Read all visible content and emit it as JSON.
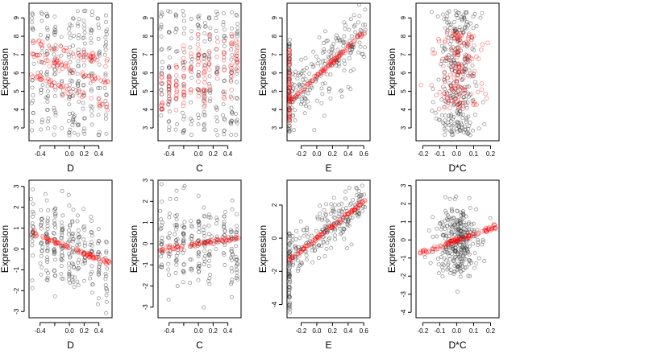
{
  "colors": {
    "observed": "#333333",
    "fitted": "#ff0000"
  },
  "chart_data": [
    {
      "type": "scatter",
      "row": 0,
      "col": 0,
      "xlabel": "D",
      "ylabel": "Expression",
      "xlim": [
        -0.55,
        0.58
      ],
      "ylim": [
        2.3,
        9.8
      ],
      "xticks": [
        -0.4,
        -0.2,
        0.0,
        0.2,
        0.4
      ],
      "xtick_labels": [
        "-0.4",
        "",
        "0.0",
        "0.2",
        "0.4"
      ],
      "yticks": [
        3,
        4,
        5,
        6,
        7,
        8,
        9
      ],
      "ytick_labels": [
        "3",
        "4",
        "5",
        "6",
        "7",
        "8",
        "9"
      ],
      "observed": {
        "x_columns": [
          -0.5,
          -0.38,
          -0.3,
          -0.2,
          -0.1,
          0.0,
          0.05,
          0.12,
          0.2,
          0.3,
          0.4,
          0.5
        ],
        "y_range": [
          2.6,
          9.4
        ],
        "count": 260
      },
      "fitted": {
        "lines": [
          {
            "x0": -0.52,
            "x1": 0.55,
            "y0": 7.7,
            "y1": 6.6
          },
          {
            "x0": -0.52,
            "x1": 0.55,
            "y0": 5.9,
            "y1": 4.1
          },
          {
            "x0": -0.52,
            "x1": 0.55,
            "y0": 7.0,
            "y1": 5.4
          }
        ],
        "count": 150
      }
    },
    {
      "type": "scatter",
      "row": 0,
      "col": 1,
      "xlabel": "C",
      "ylabel": "Expression",
      "xlim": [
        -0.55,
        0.58
      ],
      "ylim": [
        2.3,
        9.8
      ],
      "xticks": [
        -0.4,
        -0.2,
        0.0,
        0.2,
        0.4
      ],
      "xtick_labels": [
        "-0.4",
        "",
        "0.0",
        "0.2",
        "0.4"
      ],
      "yticks": [
        3,
        4,
        5,
        6,
        7,
        8,
        9
      ],
      "ytick_labels": [
        "3",
        "4",
        "5",
        "6",
        "7",
        "8",
        "9"
      ],
      "observed": {
        "x_columns": [
          -0.5,
          -0.4,
          -0.3,
          -0.2,
          -0.1,
          0.0,
          0.08,
          0.15,
          0.25,
          0.35,
          0.45,
          0.52
        ],
        "y_range": [
          2.6,
          9.4
        ],
        "count": 240
      },
      "fitted": {
        "bands": [
          {
            "x": -0.5,
            "y": [
              4.0,
              6.2
            ]
          },
          {
            "x": -0.4,
            "y": [
              4.4,
              5.8
            ]
          },
          {
            "x": -0.3,
            "y": [
              3.8,
              6.8
            ]
          },
          {
            "x": -0.2,
            "y": [
              4.2,
              7.6
            ]
          },
          {
            "x": -0.1,
            "y": [
              4.9,
              7.5
            ]
          },
          {
            "x": 0.0,
            "y": [
              4.5,
              8.2
            ]
          },
          {
            "x": 0.08,
            "y": [
              4.1,
              7.0
            ]
          },
          {
            "x": 0.15,
            "y": [
              4.8,
              8.3
            ]
          },
          {
            "x": 0.25,
            "y": [
              5.5,
              7.9
            ]
          },
          {
            "x": 0.35,
            "y": [
              4.4,
              8.0
            ]
          },
          {
            "x": 0.45,
            "y": [
              4.6,
              8.3
            ]
          },
          {
            "x": 0.52,
            "y": [
              6.1,
              7.8
            ]
          }
        ],
        "count": 150
      }
    },
    {
      "type": "scatter",
      "row": 0,
      "col": 2,
      "xlabel": "E",
      "ylabel": "Expression",
      "xlim": [
        -0.38,
        0.68
      ],
      "ylim": [
        2.3,
        9.8
      ],
      "xticks": [
        -0.2,
        0.0,
        0.2,
        0.4,
        0.6
      ],
      "xtick_labels": [
        "-0.2",
        "0.0",
        "0.2",
        "0.4",
        "0.6"
      ],
      "yticks": [
        3,
        4,
        5,
        6,
        7,
        8,
        9
      ],
      "ytick_labels": [
        "3",
        "4",
        "5",
        "6",
        "7",
        "8",
        "9"
      ],
      "observed": {
        "trend": {
          "x0": -0.35,
          "x1": 0.62,
          "y0": 4.5,
          "y1": 8.2
        },
        "spread": 0.9,
        "vertical_x": -0.35,
        "vertical_y": [
          2.6,
          8.0
        ],
        "count": 260
      },
      "fitted": {
        "line": {
          "x0": -0.35,
          "x1": 0.62,
          "y0": 4.4,
          "y1": 8.3
        },
        "vertical_x": -0.35,
        "vertical_y": [
          3.3,
          7.3
        ],
        "count": 150
      }
    },
    {
      "type": "scatter",
      "row": 0,
      "col": 3,
      "xlabel": "D*C",
      "ylabel": "Expression",
      "xlim": [
        -0.24,
        0.25
      ],
      "ylim": [
        2.3,
        9.8
      ],
      "xticks": [
        -0.2,
        -0.1,
        0.0,
        0.1,
        0.2
      ],
      "xtick_labels": [
        "-0.2",
        "-0.1",
        "0.0",
        "0.1",
        "0.2"
      ],
      "yticks": [
        3,
        4,
        5,
        6,
        7,
        8,
        9
      ],
      "ytick_labels": [
        "3",
        "4",
        "5",
        "6",
        "7",
        "8",
        "9"
      ],
      "observed": {
        "center": 0.0,
        "x_spread": 0.06,
        "y_range": [
          2.6,
          9.4
        ],
        "count": 300
      },
      "fitted": {
        "center": 0.0,
        "x_spread": 0.07,
        "y_range": [
          4.0,
          8.3
        ],
        "count": 150
      }
    },
    {
      "type": "scatter",
      "row": 1,
      "col": 0,
      "xlabel": "D",
      "ylabel": "Expression",
      "xlim": [
        -0.55,
        0.58
      ],
      "ylim": [
        -3.3,
        3.3
      ],
      "xticks": [
        -0.4,
        -0.2,
        0.0,
        0.2,
        0.4
      ],
      "xtick_labels": [
        "-0.4",
        "",
        "0.0",
        "0.2",
        "0.4"
      ],
      "yticks": [
        -3,
        -2,
        -1,
        0,
        1,
        2,
        3
      ],
      "ytick_labels": [
        "-3",
        "-2",
        "-1",
        "0",
        "1",
        "2",
        "3"
      ],
      "observed": {
        "trend": {
          "x0": -0.52,
          "x1": 0.55,
          "y0": 0.8,
          "y1": -0.7
        },
        "spread": 1.0,
        "x_columns": [
          -0.5,
          -0.38,
          -0.3,
          -0.2,
          -0.1,
          0.0,
          0.05,
          0.12,
          0.2,
          0.3,
          0.4,
          0.5
        ],
        "count": 260
      },
      "fitted": {
        "line": {
          "x0": -0.52,
          "x1": 0.55,
          "y0": 0.8,
          "y1": -0.7
        },
        "count": 90
      }
    },
    {
      "type": "scatter",
      "row": 1,
      "col": 1,
      "xlabel": "C",
      "ylabel": "Expression",
      "xlim": [
        -0.55,
        0.58
      ],
      "ylim": [
        -3.5,
        3.0
      ],
      "xticks": [
        -0.4,
        -0.2,
        0.0,
        0.2,
        0.4
      ],
      "xtick_labels": [
        "-0.4",
        "",
        "0.0",
        "0.2",
        "0.4"
      ],
      "yticks": [
        -3,
        -2,
        -1,
        0,
        1,
        2,
        3
      ],
      "ytick_labels": [
        "-3",
        "-2",
        "-1",
        "0",
        "1",
        "2",
        "3"
      ],
      "observed": {
        "x_columns": [
          -0.5,
          -0.4,
          -0.3,
          -0.2,
          -0.1,
          0.0,
          0.08,
          0.15,
          0.25,
          0.35,
          0.45,
          0.52
        ],
        "spread": 1.0,
        "count": 240
      },
      "fitted": {
        "line": {
          "x0": -0.52,
          "x1": 0.55,
          "y0": -0.3,
          "y1": 0.3
        },
        "count": 80
      }
    },
    {
      "type": "scatter",
      "row": 1,
      "col": 2,
      "xlabel": "E",
      "ylabel": "Expression",
      "xlim": [
        -0.38,
        0.68
      ],
      "ylim": [
        -4.8,
        3.5
      ],
      "xticks": [
        -0.2,
        0.0,
        0.2,
        0.4,
        0.6
      ],
      "xtick_labels": [
        "-0.2",
        "0.0",
        "0.2",
        "0.4",
        "0.6"
      ],
      "yticks": [
        -4,
        -2,
        0,
        2
      ],
      "ytick_labels": [
        "-4",
        "-2",
        "0",
        "2"
      ],
      "observed": {
        "trend": {
          "x0": -0.35,
          "x1": 0.62,
          "y0": -1.2,
          "y1": 2.4
        },
        "spread": 0.7,
        "vertical_x": -0.35,
        "vertical_y": [
          -4.5,
          0.5
        ],
        "count": 260
      },
      "fitted": {
        "line": {
          "x0": -0.35,
          "x1": 0.62,
          "y0": -1.3,
          "y1": 2.3
        },
        "count": 110
      }
    },
    {
      "type": "scatter",
      "row": 1,
      "col": 3,
      "xlabel": "D*C",
      "ylabel": "Expression",
      "xlim": [
        -0.24,
        0.25
      ],
      "ylim": [
        -4.3,
        3.3
      ],
      "xticks": [
        -0.2,
        -0.1,
        0.0,
        0.1,
        0.2
      ],
      "xtick_labels": [
        "-0.2",
        "-0.1",
        "0.0",
        "0.1",
        "0.2"
      ],
      "yticks": [
        -4,
        -3,
        -2,
        -1,
        0,
        1,
        2,
        3
      ],
      "ytick_labels": [
        "-4",
        "-3",
        "-2",
        "-1",
        "0",
        "1",
        "2",
        "3"
      ],
      "observed": {
        "center": 0.0,
        "x_spread": 0.06,
        "spread": 1.0,
        "count": 300
      },
      "fitted": {
        "line": {
          "x0": -0.22,
          "x1": 0.23,
          "y0": -0.75,
          "y1": 0.75
        },
        "count": 110
      }
    }
  ]
}
